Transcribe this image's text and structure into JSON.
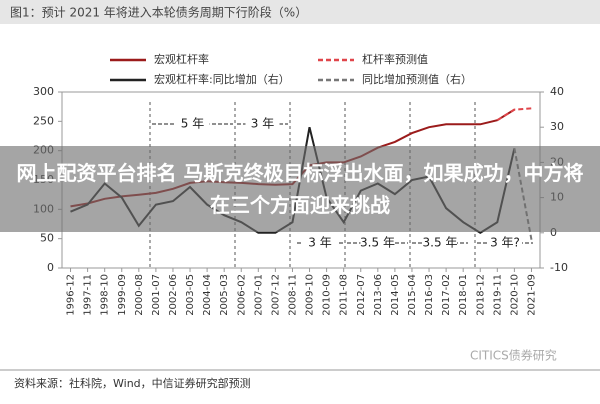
{
  "chart_data": {
    "type": "line",
    "title": "图1：预计 2021 年将进入本轮债务周期下行阶段（%）",
    "categories": [
      "1996-12",
      "1997-11",
      "1998-10",
      "1999-09",
      "2000-08",
      "2001-07",
      "2002-06",
      "2003-05",
      "2004-04",
      "2005-03",
      "2006-02",
      "2007-01",
      "2007-12",
      "2008-11",
      "2009-10",
      "2010-09",
      "2011-08",
      "2012-07",
      "2013-06",
      "2014-05",
      "2015-04",
      "2016-03",
      "2017-02",
      "2018-01",
      "2018-12",
      "2019-11",
      "2020-10",
      "2021-09"
    ],
    "series": [
      {
        "name": "宏观杠杆率",
        "color": "#9b1b1b",
        "dash": false,
        "values": [
          105,
          110,
          118,
          122,
          125,
          128,
          135,
          145,
          148,
          146,
          145,
          143,
          142,
          143,
          175,
          180,
          180,
          190,
          205,
          215,
          230,
          240,
          245,
          245,
          245,
          252,
          270,
          null
        ]
      },
      {
        "name": "杠杆率预测值",
        "color": "#e0454a",
        "dash": true,
        "values": [
          null,
          null,
          null,
          null,
          null,
          null,
          null,
          null,
          null,
          null,
          null,
          null,
          null,
          null,
          null,
          null,
          null,
          null,
          null,
          null,
          null,
          null,
          null,
          null,
          null,
          252,
          270,
          272
        ]
      },
      {
        "name": "宏观杠杆率:同比增加（右）",
        "color": "#222222",
        "dash": false,
        "axis": "y2",
        "values": [
          6,
          8,
          14,
          10,
          2,
          8,
          9,
          13,
          8,
          5,
          3,
          0,
          0,
          3,
          30,
          10,
          3,
          12,
          14,
          11,
          15,
          16,
          7,
          3,
          0,
          3,
          24,
          null
        ]
      },
      {
        "name": "同比增加预测值（右）",
        "color": "#777777",
        "dash": true,
        "axis": "y2",
        "values": [
          null,
          null,
          null,
          null,
          null,
          null,
          null,
          null,
          null,
          null,
          null,
          null,
          null,
          null,
          null,
          null,
          null,
          null,
          null,
          null,
          null,
          null,
          null,
          null,
          null,
          null,
          24,
          -2
        ]
      }
    ],
    "ylim": [
      0,
      300
    ],
    "yticks": [
      0,
      50,
      100,
      150,
      200,
      250,
      300
    ],
    "y2lim": [
      -10,
      40
    ],
    "y2ticks": [
      -10,
      0,
      10,
      20,
      30,
      40
    ],
    "legend": "top",
    "annotations": [
      "5 年",
      "3 年",
      "3 年",
      "3.5 年",
      "3.5 年",
      "3 年?"
    ],
    "source": "资料来源：社科院，Wind，中信证券研究部预测",
    "watermark": "CITICS债券研究",
    "overlay": "网上配资平台排名 马斯克终极目标浮出水面，如果成功，中方将在三个方面迎来挑战"
  }
}
